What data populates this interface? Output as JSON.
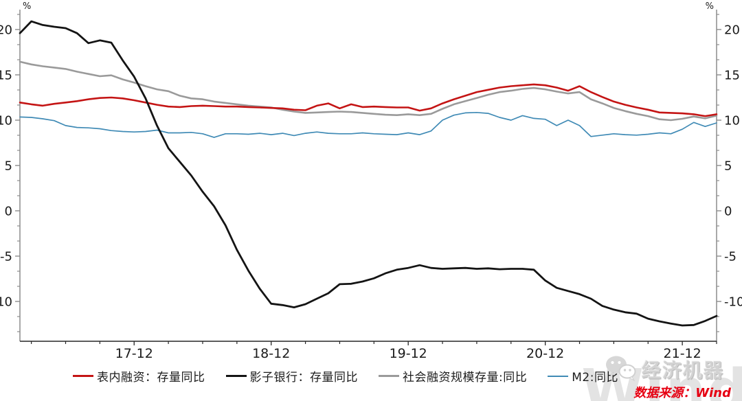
{
  "chart_data": {
    "type": "line",
    "title": "",
    "x_unit": "month",
    "months": [
      "2017-02",
      "2017-03",
      "2017-04",
      "2017-05",
      "2017-06",
      "2017-07",
      "2017-08",
      "2017-09",
      "2017-10",
      "2017-11",
      "2017-12",
      "2018-01",
      "2018-02",
      "2018-03",
      "2018-04",
      "2018-05",
      "2018-06",
      "2018-07",
      "2018-08",
      "2018-09",
      "2018-10",
      "2018-11",
      "2018-12",
      "2019-01",
      "2019-02",
      "2019-03",
      "2019-04",
      "2019-05",
      "2019-06",
      "2019-07",
      "2019-08",
      "2019-09",
      "2019-10",
      "2019-11",
      "2019-12",
      "2020-01",
      "2020-02",
      "2020-03",
      "2020-04",
      "2020-05",
      "2020-06",
      "2020-07",
      "2020-08",
      "2020-09",
      "2020-10",
      "2020-11",
      "2020-12",
      "2021-01",
      "2021-02",
      "2021-03",
      "2021-04",
      "2021-05",
      "2021-06",
      "2021-07",
      "2021-08",
      "2021-09",
      "2021-10",
      "2021-11",
      "2021-12",
      "2022-01",
      "2022-02",
      "2022-03"
    ],
    "x_tick_labels": [
      "17-12",
      "18-12",
      "19-12",
      "20-12",
      "21-12"
    ],
    "x_major_tick_indices": [
      10,
      22,
      34,
      46,
      58
    ],
    "minor_tick_every_months": 3,
    "y_axis": {
      "unit": "%",
      "ticks": [
        20,
        15,
        10,
        5,
        0,
        -5,
        -10
      ],
      "ylim": [
        -14.4,
        22.2
      ],
      "mirrored": true
    },
    "grid": false,
    "legend_position": "bottom",
    "series": [
      {
        "name": "表内融资：存量同比",
        "color": "#c41414",
        "values": [
          11.95,
          11.75,
          11.6,
          11.8,
          11.95,
          12.1,
          12.3,
          12.45,
          12.5,
          12.4,
          12.2,
          11.95,
          11.7,
          11.5,
          11.45,
          11.55,
          11.6,
          11.55,
          11.5,
          11.5,
          11.45,
          11.4,
          11.35,
          11.3,
          11.15,
          11.1,
          11.6,
          11.85,
          11.3,
          11.75,
          11.45,
          11.5,
          11.45,
          11.4,
          11.4,
          11.05,
          11.3,
          11.85,
          12.3,
          12.7,
          13.1,
          13.35,
          13.6,
          13.75,
          13.85,
          13.95,
          13.85,
          13.6,
          13.25,
          13.75,
          13.1,
          12.55,
          12.05,
          11.7,
          11.4,
          11.15,
          10.85,
          10.8,
          10.75,
          10.65,
          10.45,
          10.65
        ]
      },
      {
        "name": "影子银行：存量同比",
        "color": "#141414",
        "values": [
          19.6,
          20.9,
          20.5,
          20.3,
          20.15,
          19.6,
          18.5,
          18.8,
          18.55,
          16.6,
          14.8,
          12.4,
          9.4,
          6.9,
          5.4,
          3.9,
          2.1,
          0.5,
          -1.6,
          -4.3,
          -6.6,
          -8.6,
          -10.25,
          -10.4,
          -10.65,
          -10.3,
          -9.7,
          -9.1,
          -8.1,
          -8.05,
          -7.8,
          -7.45,
          -6.9,
          -6.5,
          -6.3,
          -6.0,
          -6.3,
          -6.4,
          -6.35,
          -6.3,
          -6.4,
          -6.35,
          -6.45,
          -6.4,
          -6.4,
          -6.5,
          -7.7,
          -8.5,
          -8.85,
          -9.2,
          -9.7,
          -10.5,
          -10.9,
          -11.2,
          -11.35,
          -11.9,
          -12.2,
          -12.45,
          -12.65,
          -12.6,
          -12.15,
          -11.6
        ]
      },
      {
        "name": "社会融资规模存量:同比",
        "color": "#9a9a9a",
        "values": [
          16.45,
          16.15,
          15.95,
          15.8,
          15.65,
          15.35,
          15.1,
          14.85,
          14.95,
          14.5,
          14.15,
          13.75,
          13.4,
          13.2,
          12.7,
          12.4,
          12.3,
          12.05,
          11.9,
          11.75,
          11.6,
          11.5,
          11.4,
          11.15,
          10.95,
          10.8,
          10.85,
          10.9,
          10.95,
          10.9,
          10.8,
          10.7,
          10.6,
          10.55,
          10.65,
          10.55,
          10.7,
          11.25,
          11.75,
          12.1,
          12.45,
          12.8,
          13.1,
          13.25,
          13.45,
          13.55,
          13.4,
          13.15,
          12.95,
          13.1,
          12.3,
          11.85,
          11.35,
          11.0,
          10.7,
          10.45,
          10.1,
          10.0,
          10.15,
          10.4,
          10.2,
          10.5
        ]
      },
      {
        "name": "M2:同比",
        "color": "#3f8ab5",
        "values": [
          10.35,
          10.3,
          10.15,
          9.95,
          9.4,
          9.2,
          9.15,
          9.05,
          8.85,
          8.75,
          8.7,
          8.75,
          8.9,
          8.6,
          8.6,
          8.65,
          8.5,
          8.1,
          8.5,
          8.5,
          8.45,
          8.55,
          8.4,
          8.55,
          8.3,
          8.55,
          8.7,
          8.55,
          8.5,
          8.5,
          8.6,
          8.5,
          8.45,
          8.4,
          8.6,
          8.4,
          8.8,
          10.0,
          10.55,
          10.8,
          10.85,
          10.75,
          10.3,
          10.0,
          10.5,
          10.2,
          10.1,
          9.4,
          10.0,
          9.4,
          8.2,
          8.35,
          8.5,
          8.4,
          8.35,
          8.45,
          8.6,
          8.5,
          9.0,
          9.75,
          9.3,
          9.7
        ]
      }
    ]
  },
  "axis_unit_label": "%",
  "watermark": {
    "brand": "经济机器",
    "wind_large": "Wind"
  },
  "source": {
    "text": "数据来源：Wind",
    "color": "#e60012"
  }
}
